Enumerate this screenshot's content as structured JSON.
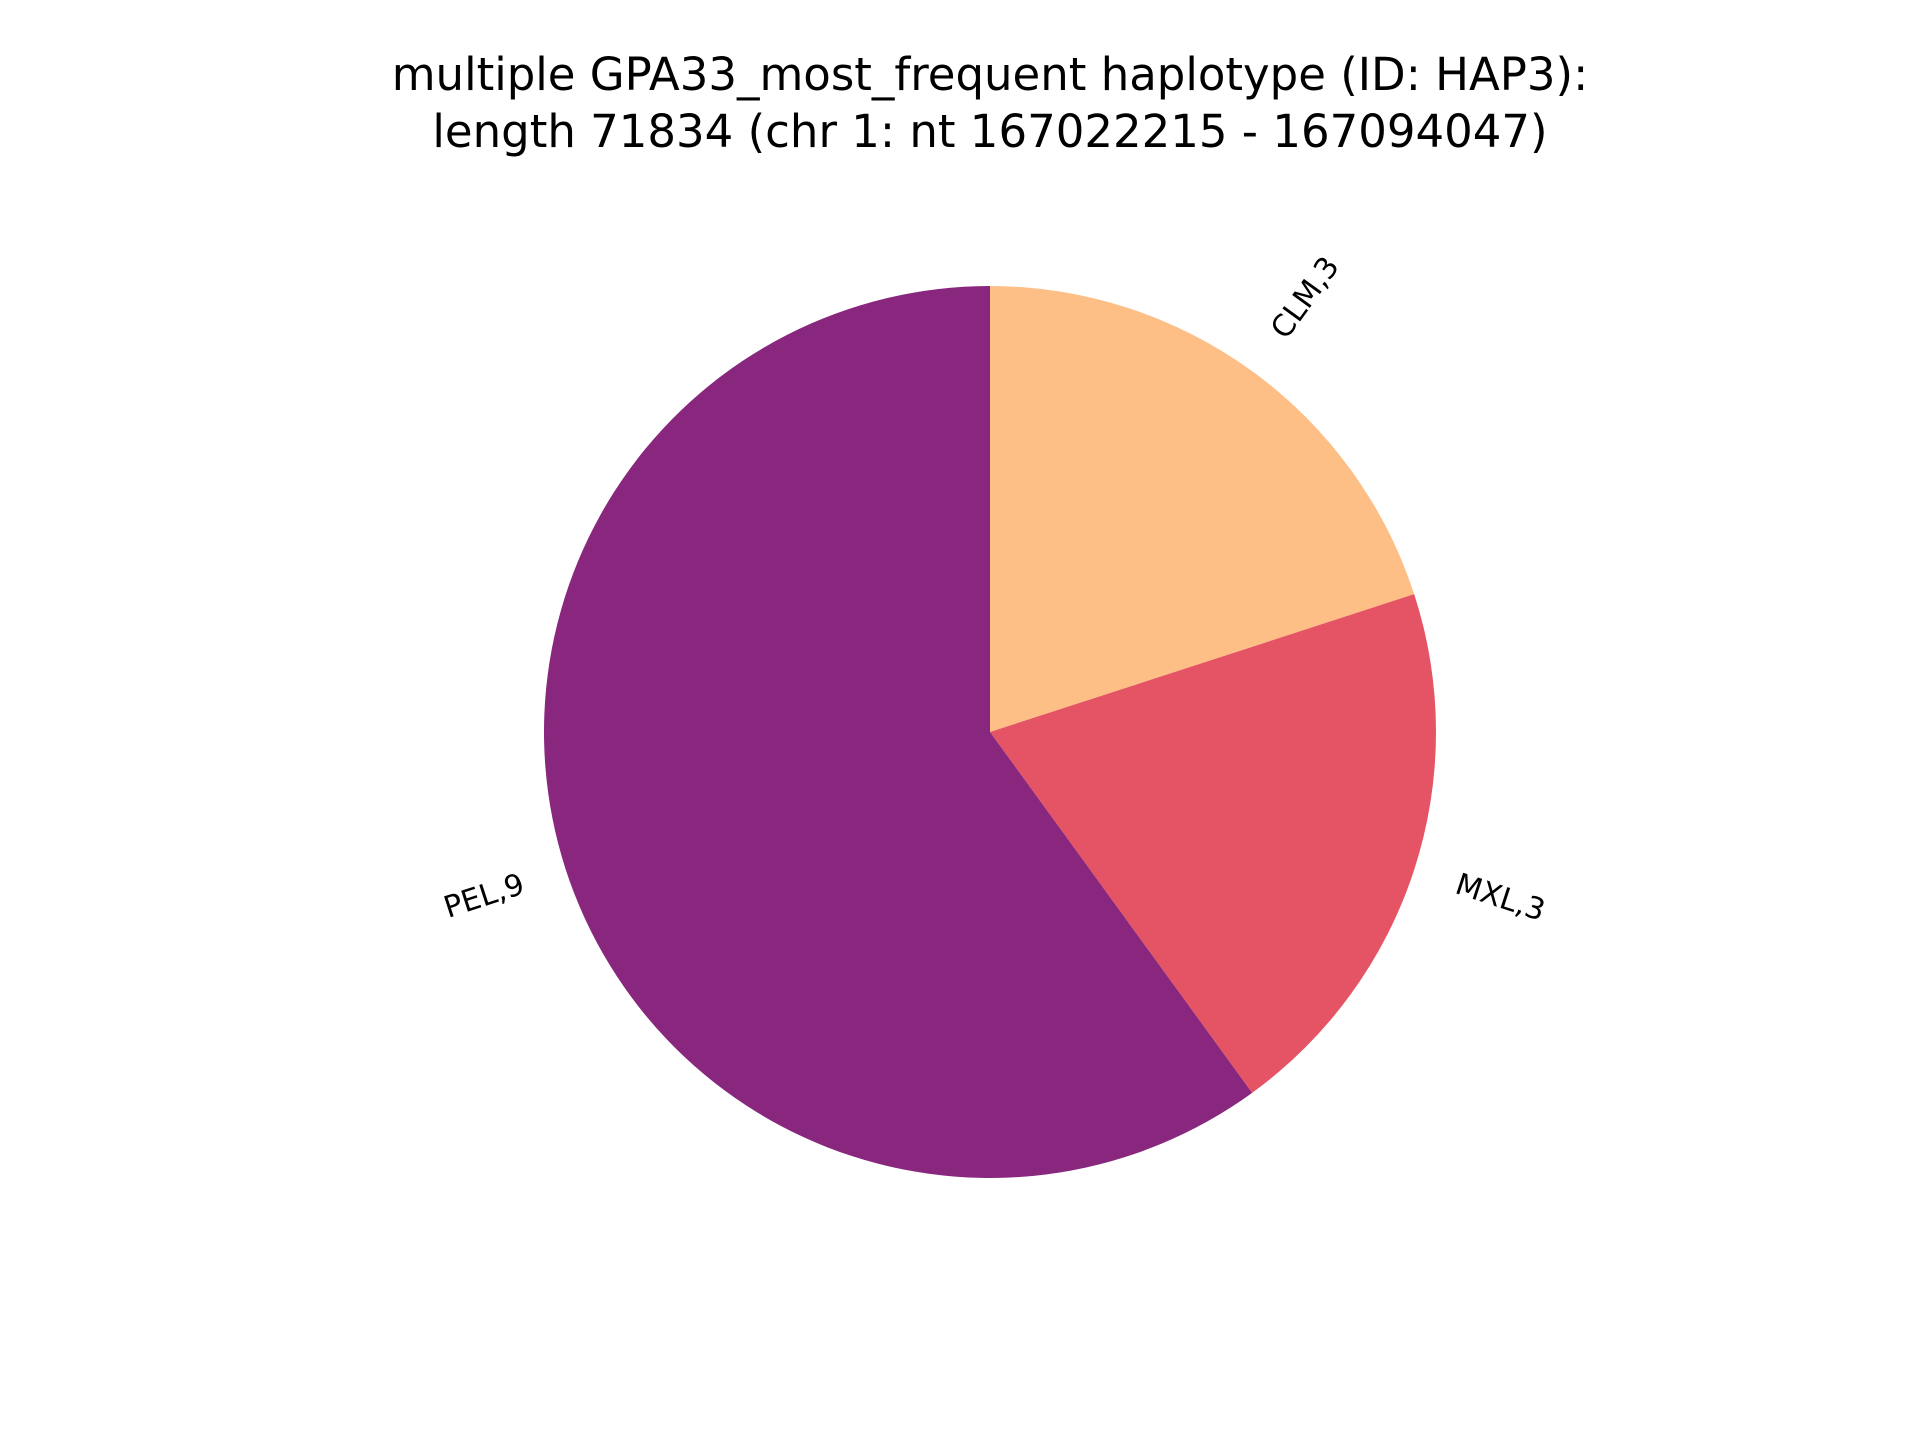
{
  "chart_data": {
    "type": "pie",
    "title_lines": [
      "multiple GPA33_most_frequent haplotype (ID: HAP3):",
      "length 71834 (chr 1: nt 167022215 - 167094047)"
    ],
    "start_angle_deg": 90,
    "direction": "clockwise",
    "slices": [
      {
        "label": "CLM,3",
        "value": 3,
        "color": "#fdbf86"
      },
      {
        "label": "MXL,3",
        "value": 3,
        "color": "#e55465"
      },
      {
        "label": "PEL,9",
        "value": 9,
        "color": "#88277d"
      }
    ]
  }
}
